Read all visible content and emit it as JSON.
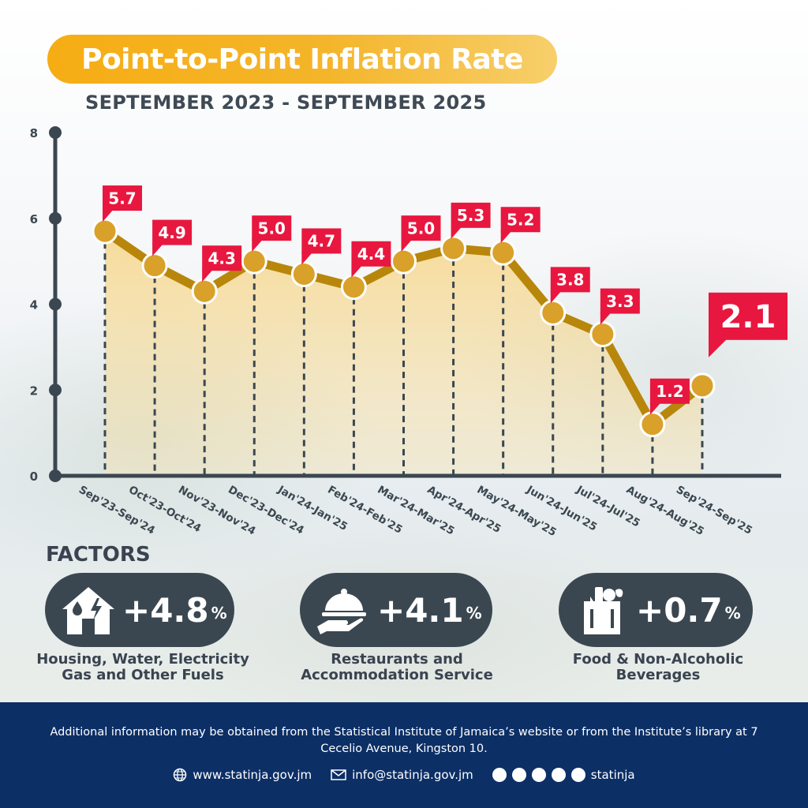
{
  "header": {
    "title": "Point-to-Point Inflation Rate",
    "subtitle": "SEPTEMBER 2023 - SEPTEMBER 2025"
  },
  "colors": {
    "accent_orange": "#f4b52a",
    "line_brown": "#b8860b",
    "marker_gold": "#d9a12a",
    "label_red": "#e8173f",
    "axis_dark": "#3b4750",
    "footer_navy": "#0c2f66"
  },
  "chart_data": {
    "type": "line",
    "title": "Point-to-Point Inflation Rate",
    "subtitle": "SEPTEMBER 2023 - SEPTEMBER 2025",
    "categories": [
      "Sep'23-Sep'24",
      "Oct'23-Oct'24",
      "Nov'23-Nov'24",
      "Dec'23-Dec'24",
      "Jan'24-Jan'25",
      "Feb'24-Feb'25",
      "Mar'24-Mar'25",
      "Apr'24-Apr'25",
      "May'24-May'25",
      "Jun'24-Jun'25",
      "Jul'24-Jul'25",
      "Aug'24-Aug'25",
      "Sep'24-Sep'25"
    ],
    "values": [
      5.7,
      4.9,
      4.3,
      5.0,
      4.7,
      4.4,
      5.0,
      5.3,
      5.2,
      3.8,
      3.3,
      1.2,
      2.1
    ],
    "data_labels": [
      "5.7",
      "4.9",
      "4.3",
      "5.0",
      "4.7",
      "4.4",
      "5.0",
      "5.3",
      "5.2",
      "3.8",
      "3.3",
      "1.2",
      "2.1"
    ],
    "yticks": [
      "0",
      "2",
      "4",
      "6",
      "8"
    ],
    "ylim": [
      0,
      8
    ],
    "xlabel": "",
    "ylabel": "",
    "grid": false,
    "highlight_last": true
  },
  "factors": {
    "heading": "FACTORS",
    "items": [
      {
        "icon": "house-utilities-icon",
        "value": "+4.8",
        "unit": "%",
        "label": "Housing, Water, Electricity\nGas and Other Fuels"
      },
      {
        "icon": "serving-cloche-icon",
        "value": "+4.1",
        "unit": "%",
        "label": "Restaurants and\nAccommodation Service"
      },
      {
        "icon": "grocery-bag-icon",
        "value": "+0.7",
        "unit": "%",
        "label": "Food & Non-Alcoholic\nBeverages"
      }
    ]
  },
  "footer": {
    "note": "Additional information may be obtained from the Statistical Institute of Jamaica’s website or from the Institute’s library at 7 Cecelio Avenue, Kingston 10.",
    "website": "www.statinja.gov.jm",
    "email": "info@statinja.gov.jm",
    "social_handle": "statinja",
    "social_icons": [
      "youtube-icon",
      "facebook-icon",
      "twitter-icon",
      "linkedin-icon",
      "instagram-icon"
    ]
  }
}
